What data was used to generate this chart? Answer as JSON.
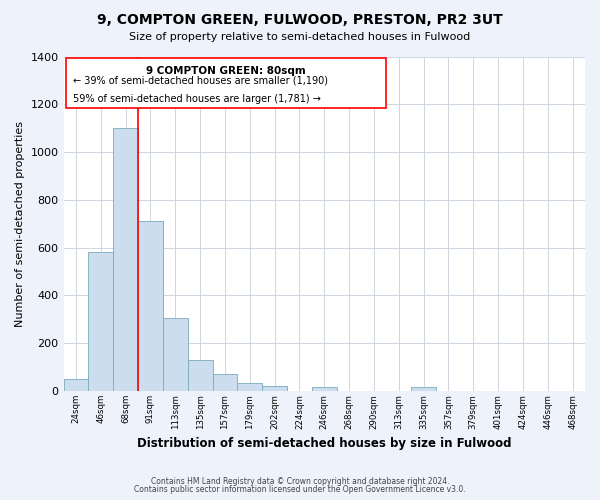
{
  "title": "9, COMPTON GREEN, FULWOOD, PRESTON, PR2 3UT",
  "subtitle": "Size of property relative to semi-detached houses in Fulwood",
  "xlabel": "Distribution of semi-detached houses by size in Fulwood",
  "ylabel": "Number of semi-detached properties",
  "bin_labels": [
    "24sqm",
    "46sqm",
    "68sqm",
    "91sqm",
    "113sqm",
    "135sqm",
    "157sqm",
    "179sqm",
    "202sqm",
    "224sqm",
    "246sqm",
    "268sqm",
    "290sqm",
    "313sqm",
    "335sqm",
    "357sqm",
    "379sqm",
    "401sqm",
    "424sqm",
    "446sqm",
    "468sqm"
  ],
  "bar_values": [
    50,
    580,
    1100,
    710,
    305,
    130,
    70,
    35,
    20,
    0,
    15,
    0,
    0,
    0,
    15,
    0,
    0,
    0,
    0,
    0,
    0
  ],
  "bar_color": "#ccdded",
  "bar_edge_color": "#7aaabb",
  "ylim": [
    0,
    1400
  ],
  "yticks": [
    0,
    200,
    400,
    600,
    800,
    1000,
    1200,
    1400
  ],
  "red_line_bin_index": 2,
  "annotation_title": "9 COMPTON GREEN: 80sqm",
  "annotation_line1": "← 39% of semi-detached houses are smaller (1,190)",
  "annotation_line2": "59% of semi-detached houses are larger (1,781) →",
  "footer_line1": "Contains HM Land Registry data © Crown copyright and database right 2024.",
  "footer_line2": "Contains public sector information licensed under the Open Government Licence v3.0.",
  "background_color": "#eef2fb",
  "plot_bg_color": "#ffffff",
  "grid_color": "#c8d0dc"
}
